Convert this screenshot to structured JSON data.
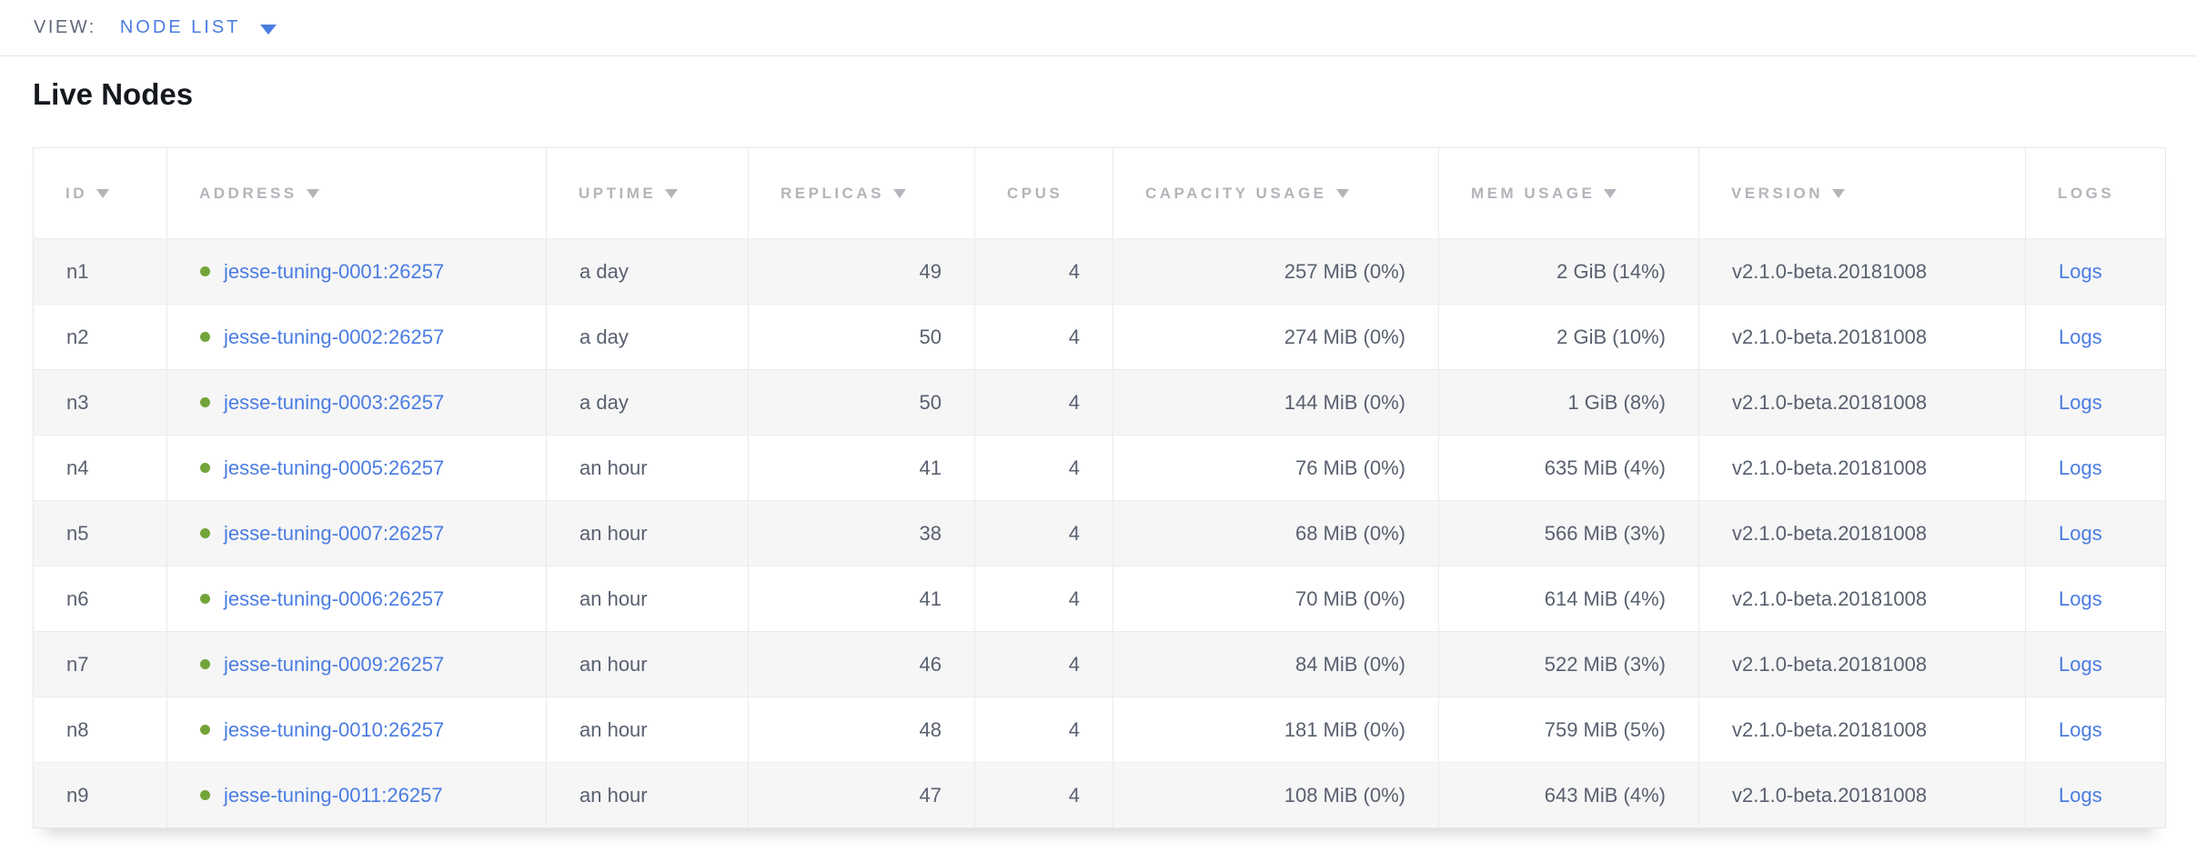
{
  "view_bar": {
    "label": "VIEW:",
    "selected": "NODE LIST"
  },
  "page": {
    "title": "Live Nodes"
  },
  "table": {
    "columns": [
      {
        "key": "id",
        "label": "ID",
        "sortable": true
      },
      {
        "key": "address",
        "label": "ADDRESS",
        "sortable": true
      },
      {
        "key": "uptime",
        "label": "UPTIME",
        "sortable": true
      },
      {
        "key": "replicas",
        "label": "REPLICAS",
        "sortable": true
      },
      {
        "key": "cpus",
        "label": "CPUS",
        "sortable": false
      },
      {
        "key": "capacity",
        "label": "CAPACITY USAGE",
        "sortable": true
      },
      {
        "key": "mem",
        "label": "MEM USAGE",
        "sortable": true
      },
      {
        "key": "version",
        "label": "VERSION",
        "sortable": true
      },
      {
        "key": "logs",
        "label": "LOGS",
        "sortable": false
      }
    ],
    "logs_label": "Logs",
    "rows": [
      {
        "id": "n1",
        "status": "live",
        "address": "jesse-tuning-0001:26257",
        "uptime": "a day",
        "replicas": "49",
        "cpus": "4",
        "capacity": "257 MiB (0%)",
        "mem": "2 GiB (14%)",
        "version": "v2.1.0-beta.20181008"
      },
      {
        "id": "n2",
        "status": "live",
        "address": "jesse-tuning-0002:26257",
        "uptime": "a day",
        "replicas": "50",
        "cpus": "4",
        "capacity": "274 MiB (0%)",
        "mem": "2 GiB (10%)",
        "version": "v2.1.0-beta.20181008"
      },
      {
        "id": "n3",
        "status": "live",
        "address": "jesse-tuning-0003:26257",
        "uptime": "a day",
        "replicas": "50",
        "cpus": "4",
        "capacity": "144 MiB (0%)",
        "mem": "1 GiB (8%)",
        "version": "v2.1.0-beta.20181008"
      },
      {
        "id": "n4",
        "status": "live",
        "address": "jesse-tuning-0005:26257",
        "uptime": "an hour",
        "replicas": "41",
        "cpus": "4",
        "capacity": "76 MiB (0%)",
        "mem": "635 MiB (4%)",
        "version": "v2.1.0-beta.20181008"
      },
      {
        "id": "n5",
        "status": "live",
        "address": "jesse-tuning-0007:26257",
        "uptime": "an hour",
        "replicas": "38",
        "cpus": "4",
        "capacity": "68 MiB (0%)",
        "mem": "566 MiB (3%)",
        "version": "v2.1.0-beta.20181008"
      },
      {
        "id": "n6",
        "status": "live",
        "address": "jesse-tuning-0006:26257",
        "uptime": "an hour",
        "replicas": "41",
        "cpus": "4",
        "capacity": "70 MiB (0%)",
        "mem": "614 MiB (4%)",
        "version": "v2.1.0-beta.20181008"
      },
      {
        "id": "n7",
        "status": "live",
        "address": "jesse-tuning-0009:26257",
        "uptime": "an hour",
        "replicas": "46",
        "cpus": "4",
        "capacity": "84 MiB (0%)",
        "mem": "522 MiB (3%)",
        "version": "v2.1.0-beta.20181008"
      },
      {
        "id": "n8",
        "status": "live",
        "address": "jesse-tuning-0010:26257",
        "uptime": "an hour",
        "replicas": "48",
        "cpus": "4",
        "capacity": "181 MiB (0%)",
        "mem": "759 MiB (5%)",
        "version": "v2.1.0-beta.20181008"
      },
      {
        "id": "n9",
        "status": "live",
        "address": "jesse-tuning-0011:26257",
        "uptime": "an hour",
        "replicas": "47",
        "cpus": "4",
        "capacity": "108 MiB (0%)",
        "mem": "643 MiB (4%)",
        "version": "v2.1.0-beta.20181008"
      }
    ]
  },
  "colors": {
    "link_blue": "#4a7ce2",
    "live_dot_green": "#73a439",
    "header_text_gray": "#b3b5ba",
    "cell_text": "#59606f",
    "row_stripe": "#f6f6f7",
    "border": "#e6e6e6"
  }
}
